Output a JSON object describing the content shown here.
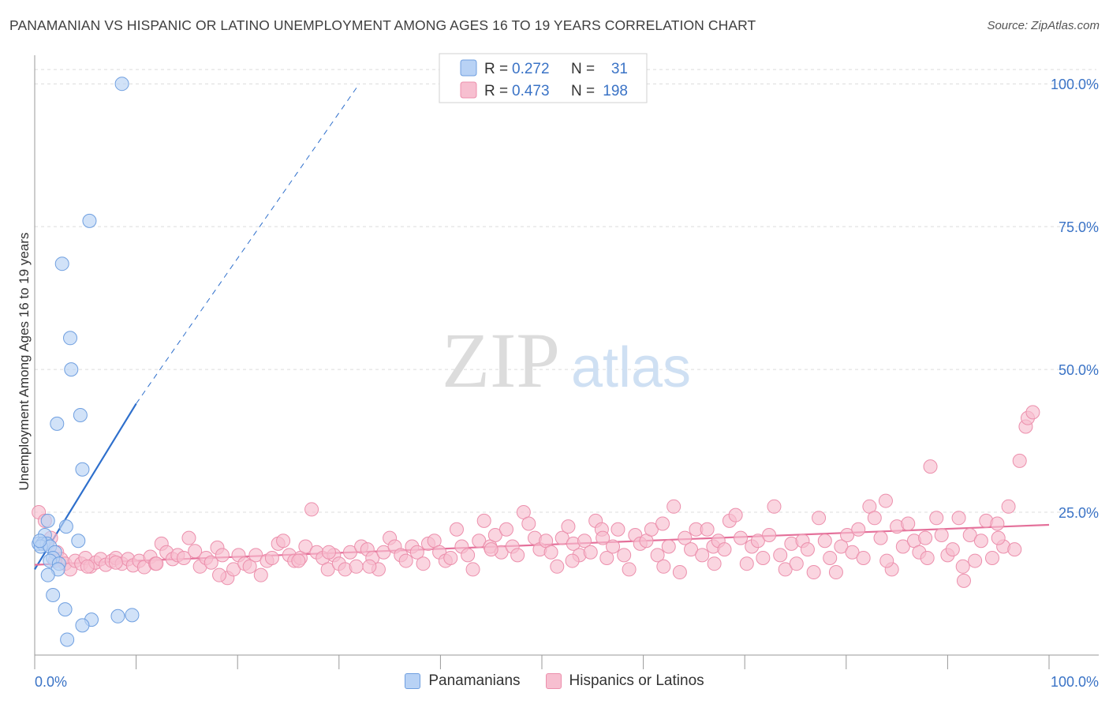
{
  "header": {
    "title": "PANAMANIAN VS HISPANIC OR LATINO UNEMPLOYMENT AMONG AGES 16 TO 19 YEARS CORRELATION CHART",
    "source": "Source: ZipAtlas.com"
  },
  "watermark": {
    "zip": "ZIP",
    "atlas": "atlas"
  },
  "stats_legend": {
    "rows": [
      {
        "r_label": "R =",
        "r_value": "0.272",
        "n_label": "N =",
        "n_value": "31"
      },
      {
        "r_label": "R =",
        "r_value": "0.473",
        "n_label": "N =",
        "n_value": "198"
      }
    ]
  },
  "bottom_legend": {
    "items": [
      {
        "label": "Panamanians"
      },
      {
        "label": "Hispanics or Latinos"
      }
    ]
  },
  "colors": {
    "blue_fill": "#b8d2f5",
    "blue_stroke": "#6f9fe0",
    "blue_line": "#2e6fcc",
    "pink_fill": "#f7bfd0",
    "pink_stroke": "#ec8fac",
    "pink_line": "#e4709a",
    "value_text": "#3a73c6",
    "grid": "#dcdcdc"
  },
  "chart_data": {
    "type": "scatter",
    "title": "PANAMANIAN VS HISPANIC OR LATINO UNEMPLOYMENT AMONG AGES 16 TO 19 YEARS CORRELATION CHART",
    "xlabel": "",
    "ylabel": "Unemployment Among Ages 16 to 19 years",
    "xlim": [
      0,
      100
    ],
    "ylim": [
      0,
      105
    ],
    "x_tick_labels": [
      {
        "value": 0,
        "label": "0.0%"
      },
      {
        "value": 100,
        "label": "100.0%"
      }
    ],
    "y_tick_labels": [
      {
        "value": 25,
        "label": "25.0%"
      },
      {
        "value": 50,
        "label": "50.0%"
      },
      {
        "value": 75,
        "label": "75.0%"
      },
      {
        "value": 100,
        "label": "100.0%"
      }
    ],
    "grid": true,
    "legend_position": "top-center",
    "series": [
      {
        "name": "Panamanians",
        "r": 0.272,
        "n": 31,
        "trend": {
          "x": [
            0,
            10
          ],
          "y": [
            15,
            44
          ]
        },
        "trend_extension": {
          "x": [
            10,
            32
          ],
          "y": [
            44,
            100
          ]
        },
        "points": [
          [
            8.6,
            100.0
          ],
          [
            5.4,
            76.0
          ],
          [
            2.7,
            68.5
          ],
          [
            3.5,
            55.5
          ],
          [
            3.6,
            50.0
          ],
          [
            4.5,
            42.0
          ],
          [
            2.2,
            40.5
          ],
          [
            4.7,
            32.5
          ],
          [
            1.3,
            23.5
          ],
          [
            3.1,
            22.5
          ],
          [
            1.0,
            21.0
          ],
          [
            4.3,
            20.0
          ],
          [
            0.4,
            19.5
          ],
          [
            0.8,
            19.5
          ],
          [
            1.2,
            19.5
          ],
          [
            0.6,
            19.0
          ],
          [
            1.5,
            19.0
          ],
          [
            2.0,
            18.0
          ],
          [
            1.8,
            17.0
          ],
          [
            1.5,
            16.5
          ],
          [
            2.4,
            16.0
          ],
          [
            2.3,
            15.0
          ],
          [
            1.3,
            14.0
          ],
          [
            1.8,
            10.5
          ],
          [
            3.0,
            8.0
          ],
          [
            9.6,
            7.0
          ],
          [
            8.2,
            6.8
          ],
          [
            5.6,
            6.2
          ],
          [
            4.7,
            5.2
          ],
          [
            3.2,
            2.7
          ],
          [
            0.5,
            20.0
          ]
        ]
      },
      {
        "name": "Hispanics or Latinos",
        "r": 0.473,
        "n": 198,
        "trend": {
          "x": [
            0,
            100
          ],
          "y": [
            15.8,
            22.8
          ]
        },
        "points": [
          [
            0.4,
            25.0
          ],
          [
            1.0,
            23.5
          ],
          [
            1.6,
            20.5
          ],
          [
            2.2,
            18.0
          ],
          [
            2.6,
            16.8
          ],
          [
            3.0,
            16.0
          ],
          [
            3.5,
            15.0
          ],
          [
            4.0,
            16.5
          ],
          [
            4.6,
            16.0
          ],
          [
            5.0,
            17.0
          ],
          [
            5.5,
            15.5
          ],
          [
            6.0,
            16.2
          ],
          [
            6.5,
            16.8
          ],
          [
            7.0,
            15.8
          ],
          [
            7.6,
            16.5
          ],
          [
            8.0,
            17.0
          ],
          [
            8.6,
            16.0
          ],
          [
            9.2,
            16.8
          ],
          [
            9.7,
            15.7
          ],
          [
            10.3,
            16.5
          ],
          [
            10.8,
            15.4
          ],
          [
            11.4,
            17.2
          ],
          [
            11.9,
            16.0
          ],
          [
            12.5,
            19.5
          ],
          [
            13.0,
            18.0
          ],
          [
            13.6,
            16.8
          ],
          [
            14.1,
            17.5
          ],
          [
            14.7,
            17.0
          ],
          [
            15.2,
            20.5
          ],
          [
            15.8,
            18.2
          ],
          [
            16.3,
            15.5
          ],
          [
            16.9,
            17.0
          ],
          [
            17.4,
            16.2
          ],
          [
            18.0,
            18.8
          ],
          [
            18.5,
            17.5
          ],
          [
            19.0,
            13.5
          ],
          [
            19.6,
            15.0
          ],
          [
            20.1,
            17.5
          ],
          [
            20.7,
            16.0
          ],
          [
            21.2,
            15.5
          ],
          [
            21.8,
            17.5
          ],
          [
            22.3,
            14.0
          ],
          [
            22.9,
            16.5
          ],
          [
            23.4,
            17.0
          ],
          [
            24.0,
            19.5
          ],
          [
            24.5,
            20.0
          ],
          [
            25.1,
            17.5
          ],
          [
            25.6,
            16.5
          ],
          [
            26.2,
            17.0
          ],
          [
            26.7,
            19.0
          ],
          [
            27.3,
            25.5
          ],
          [
            27.8,
            18.0
          ],
          [
            28.4,
            17.0
          ],
          [
            28.9,
            15.0
          ],
          [
            29.5,
            17.5
          ],
          [
            30.0,
            16.0
          ],
          [
            30.6,
            15.0
          ],
          [
            31.1,
            18.0
          ],
          [
            31.7,
            15.5
          ],
          [
            32.2,
            19.0
          ],
          [
            32.8,
            18.5
          ],
          [
            33.3,
            17.0
          ],
          [
            33.9,
            15.0
          ],
          [
            34.4,
            18.0
          ],
          [
            35.0,
            20.5
          ],
          [
            35.5,
            19.0
          ],
          [
            36.1,
            17.5
          ],
          [
            36.6,
            16.5
          ],
          [
            37.2,
            19.0
          ],
          [
            37.7,
            18.0
          ],
          [
            38.3,
            16.0
          ],
          [
            38.8,
            19.5
          ],
          [
            39.4,
            20.0
          ],
          [
            39.9,
            18.0
          ],
          [
            40.5,
            16.5
          ],
          [
            41.0,
            17.0
          ],
          [
            41.6,
            22.0
          ],
          [
            42.1,
            19.0
          ],
          [
            42.7,
            17.5
          ],
          [
            43.2,
            15.0
          ],
          [
            43.8,
            20.0
          ],
          [
            44.3,
            23.5
          ],
          [
            44.9,
            19.0
          ],
          [
            45.4,
            21.0
          ],
          [
            46.0,
            18.0
          ],
          [
            46.5,
            22.0
          ],
          [
            47.1,
            19.0
          ],
          [
            47.6,
            17.5
          ],
          [
            48.2,
            25.0
          ],
          [
            48.7,
            23.0
          ],
          [
            49.3,
            20.5
          ],
          [
            49.8,
            18.5
          ],
          [
            50.4,
            20.0
          ],
          [
            50.9,
            18.0
          ],
          [
            51.5,
            15.5
          ],
          [
            52.0,
            20.5
          ],
          [
            52.6,
            22.5
          ],
          [
            53.1,
            19.5
          ],
          [
            53.7,
            17.5
          ],
          [
            54.2,
            20.0
          ],
          [
            54.8,
            18.0
          ],
          [
            55.3,
            23.5
          ],
          [
            55.9,
            22.0
          ],
          [
            56.4,
            17.0
          ],
          [
            57.0,
            19.0
          ],
          [
            57.5,
            22.0
          ],
          [
            58.1,
            17.5
          ],
          [
            58.6,
            15.0
          ],
          [
            59.2,
            21.0
          ],
          [
            59.7,
            19.5
          ],
          [
            60.3,
            20.0
          ],
          [
            60.8,
            22.0
          ],
          [
            61.4,
            17.5
          ],
          [
            61.9,
            23.0
          ],
          [
            62.5,
            19.0
          ],
          [
            63.0,
            26.0
          ],
          [
            63.6,
            14.5
          ],
          [
            64.1,
            20.5
          ],
          [
            64.7,
            18.5
          ],
          [
            65.2,
            22.0
          ],
          [
            65.8,
            17.5
          ],
          [
            66.3,
            22.0
          ],
          [
            66.9,
            19.0
          ],
          [
            67.4,
            20.0
          ],
          [
            68.0,
            18.5
          ],
          [
            68.5,
            23.5
          ],
          [
            69.1,
            24.5
          ],
          [
            69.6,
            20.5
          ],
          [
            70.2,
            16.0
          ],
          [
            70.7,
            19.0
          ],
          [
            71.3,
            20.0
          ],
          [
            71.8,
            17.0
          ],
          [
            72.4,
            21.0
          ],
          [
            72.9,
            26.0
          ],
          [
            73.5,
            17.5
          ],
          [
            74.0,
            15.0
          ],
          [
            74.6,
            19.5
          ],
          [
            75.1,
            16.0
          ],
          [
            75.7,
            20.0
          ],
          [
            76.2,
            18.5
          ],
          [
            76.8,
            14.5
          ],
          [
            77.3,
            24.0
          ],
          [
            77.9,
            20.0
          ],
          [
            78.4,
            17.0
          ],
          [
            79.0,
            14.5
          ],
          [
            79.5,
            19.0
          ],
          [
            80.1,
            21.0
          ],
          [
            80.6,
            18.0
          ],
          [
            81.2,
            22.0
          ],
          [
            81.7,
            17.0
          ],
          [
            82.3,
            26.0
          ],
          [
            82.8,
            24.0
          ],
          [
            83.4,
            20.5
          ],
          [
            83.9,
            27.0
          ],
          [
            84.5,
            15.0
          ],
          [
            85.0,
            22.5
          ],
          [
            85.6,
            19.0
          ],
          [
            86.1,
            23.0
          ],
          [
            86.7,
            20.0
          ],
          [
            87.2,
            18.0
          ],
          [
            87.8,
            20.5
          ],
          [
            88.3,
            33.0
          ],
          [
            88.9,
            24.0
          ],
          [
            89.4,
            21.0
          ],
          [
            90.0,
            17.5
          ],
          [
            90.5,
            18.5
          ],
          [
            91.1,
            24.0
          ],
          [
            91.6,
            13.0
          ],
          [
            92.2,
            21.0
          ],
          [
            92.7,
            16.5
          ],
          [
            93.3,
            20.0
          ],
          [
            93.8,
            23.5
          ],
          [
            94.4,
            17.0
          ],
          [
            94.9,
            23.0
          ],
          [
            95.5,
            19.0
          ],
          [
            96.0,
            26.0
          ],
          [
            96.6,
            18.5
          ],
          [
            97.1,
            34.0
          ],
          [
            97.7,
            40.0
          ],
          [
            97.9,
            41.5
          ],
          [
            98.4,
            42.5
          ],
          [
            2.0,
            16.5
          ],
          [
            5.2,
            15.5
          ],
          [
            8.0,
            16.2
          ],
          [
            12.0,
            16.0
          ],
          [
            18.2,
            14.0
          ],
          [
            26.0,
            16.5
          ],
          [
            29.0,
            18.0
          ],
          [
            33.0,
            15.5
          ],
          [
            45.0,
            18.5
          ],
          [
            53.0,
            16.5
          ],
          [
            56.0,
            20.5
          ],
          [
            62.0,
            15.5
          ],
          [
            67.0,
            16.0
          ],
          [
            84.0,
            16.5
          ],
          [
            88.0,
            17.0
          ],
          [
            91.5,
            15.5
          ],
          [
            95.0,
            20.5
          ]
        ]
      }
    ]
  }
}
